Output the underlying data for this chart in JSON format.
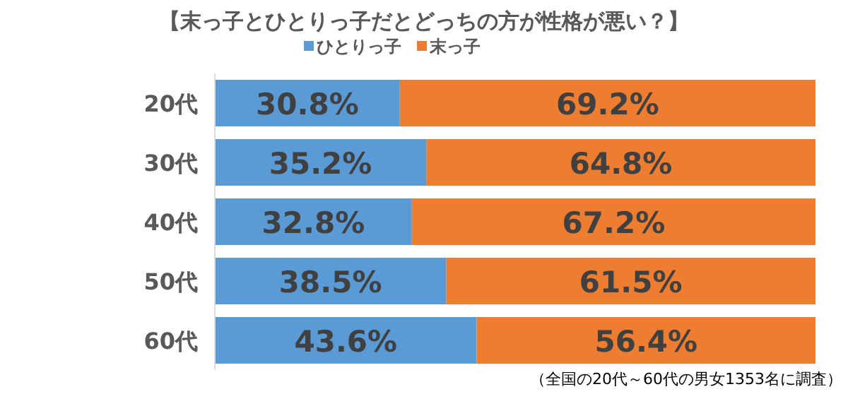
{
  "chart_data": {
    "type": "bar",
    "orientation": "horizontal",
    "stacked": true,
    "title": "【末っ子とひとりっ子だとどっちの方が性格が悪い？】",
    "categories": [
      "20代",
      "30代",
      "40代",
      "50代",
      "60代"
    ],
    "series": [
      {
        "name": "ひとりっ子",
        "color": "#5b9bd5",
        "values": [
          30.8,
          35.2,
          32.8,
          38.5,
          43.6
        ],
        "value_labels": [
          "30.8%",
          "35.2%",
          "32.8%",
          "38.5%",
          "43.6%"
        ]
      },
      {
        "name": "末っ子",
        "color": "#ed7d31",
        "values": [
          69.2,
          64.8,
          67.2,
          61.5,
          56.4
        ],
        "value_labels": [
          "69.2%",
          "64.8%",
          "67.2%",
          "61.5%",
          "56.4%"
        ]
      }
    ],
    "legend": "top",
    "annotations": [
      "（全国の20代～60代の男女1353名に調査）"
    ]
  }
}
